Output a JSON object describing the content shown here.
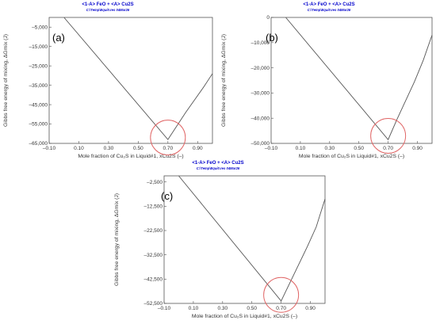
{
  "chart_data": [
    {
      "type": "line",
      "panel_label": "(a)",
      "title": "<1-A> FeO  +  <A> Cu2S",
      "subtitle": "C:\\Temp\\Equi0.res  04Mar26",
      "xlabel": "Mole fraction of Cu₂S in Liquid#1, xCu2S (–)",
      "ylabel": "Gibbs free energy of mixing, ΔGmix (J)",
      "xlim": [
        -0.1,
        1.0
      ],
      "ylim": [
        -65000,
        0
      ],
      "x_ticks": [
        "–0.10",
        "0.10",
        "0.30",
        "0.50",
        "0.70",
        "0.90"
      ],
      "x_tick_values": [
        -0.1,
        0.1,
        0.3,
        0.5,
        0.7,
        0.9
      ],
      "y_ticks": [
        "–65,000",
        "–55,000",
        "–45,000",
        "–35,000",
        "–25,000",
        "–15,000",
        "–5,000"
      ],
      "y_tick_values": [
        -65000,
        -55000,
        -45000,
        -35000,
        -25000,
        -15000,
        -5000
      ],
      "series": [
        {
          "x": [
            0.0,
            0.7,
            0.76,
            0.82,
            0.88,
            0.94,
            1.0
          ],
          "y": [
            0,
            -63000,
            -56000,
            -49000,
            -42500,
            -36000,
            -29000
          ]
        }
      ],
      "highlight": {
        "x": 0.7,
        "y": -62000
      },
      "grid": false
    },
    {
      "type": "line",
      "panel_label": "(b)",
      "title": "<1-A> FeO  +  <A> Cu2S",
      "subtitle": "C:\\Temp\\Equi0.res  04Mar26",
      "xlabel": "Mole fraction of Cu₂S in Liquid#1, xCu2S (–)",
      "ylabel": "Gibbs free energy of mixing, ΔGmix (J)",
      "xlim": [
        -0.1,
        1.0
      ],
      "ylim": [
        -50000,
        0
      ],
      "x_ticks": [
        "–0.10",
        "0.10",
        "0.30",
        "0.50",
        "0.70",
        "0.90"
      ],
      "x_tick_values": [
        -0.1,
        0.1,
        0.3,
        0.5,
        0.7,
        0.9
      ],
      "y_ticks": [
        "0",
        "–10,000",
        "–20,000",
        "–30,000",
        "–40,000",
        "–50,000"
      ],
      "y_tick_values": [
        0,
        -10000,
        -20000,
        -30000,
        -40000,
        -50000
      ],
      "series": [
        {
          "x": [
            0.0,
            0.7,
            0.76,
            0.82,
            0.88,
            0.94,
            1.0
          ],
          "y": [
            0,
            -48500,
            -40500,
            -33000,
            -25500,
            -17000,
            -7000
          ]
        }
      ],
      "highlight": {
        "x": 0.7,
        "y": -47000
      },
      "grid": false
    },
    {
      "type": "line",
      "panel_label": "(c)",
      "title": "<1-A> FeO  +  <A> Cu2S",
      "subtitle": "C:\\Temp\\Equi0.res  04Mar26",
      "xlabel": "Mole fraction of Cu₂S in Liquid#1, xCu2S (–)",
      "ylabel": "Gibbs free energy of mixing, ΔGmix (J)",
      "xlim": [
        -0.1,
        1.0
      ],
      "ylim": [
        -52500,
        0
      ],
      "x_ticks": [
        "–0.10",
        "0.10",
        "0.30",
        "0.50",
        "0.70",
        "0.90"
      ],
      "x_tick_values": [
        -0.1,
        0.1,
        0.3,
        0.5,
        0.7,
        0.9
      ],
      "y_ticks": [
        "–2,500",
        "–12,500",
        "–22,500",
        "–32,500",
        "–42,500",
        "–52,500"
      ],
      "y_tick_values": [
        -2500,
        -12500,
        -22500,
        -32500,
        -42500,
        -52500
      ],
      "series": [
        {
          "x": [
            0.0,
            0.7,
            0.76,
            0.82,
            0.88,
            0.94,
            1.0
          ],
          "y": [
            0,
            -51500,
            -44000,
            -36500,
            -29000,
            -21000,
            -9500
          ]
        }
      ],
      "highlight": {
        "x": 0.7,
        "y": -49000
      },
      "grid": false
    }
  ]
}
